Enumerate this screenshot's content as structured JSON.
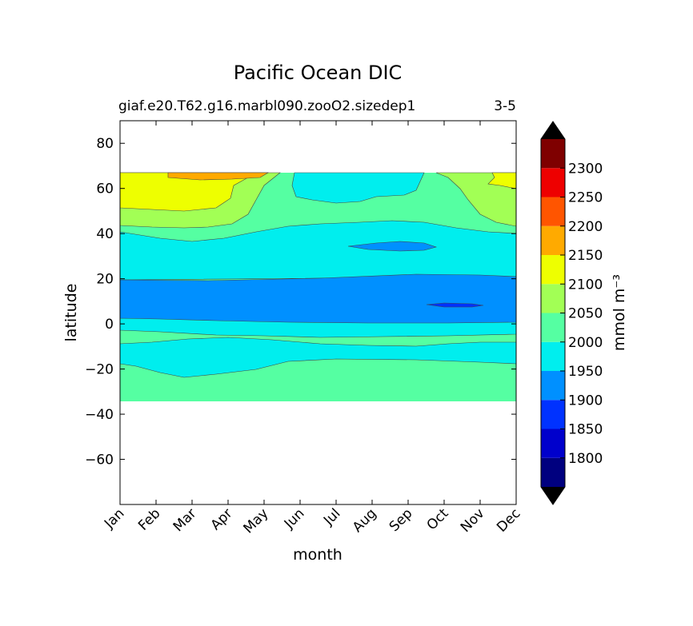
{
  "chart_data": {
    "type": "heatmap",
    "title": "Pacific Ocean DIC",
    "subtitle_left": "giaf.e20.T62.g16.marbl090.zooO2.sizedep1",
    "subtitle_right": "3-5",
    "xlabel": "month",
    "ylabel": "latitude",
    "x_categories": [
      "Jan",
      "Feb",
      "Mar",
      "Apr",
      "May",
      "Jun",
      "Jul",
      "Aug",
      "Sep",
      "Oct",
      "Nov",
      "Dec"
    ],
    "xlim": [
      0,
      11
    ],
    "ylim": [
      -80,
      90
    ],
    "yticks": [
      80,
      60,
      40,
      20,
      0,
      -20,
      -40,
      -60
    ],
    "ytick_labels": [
      "80",
      "60",
      "40",
      "20",
      "0",
      "−20",
      "−40",
      "−60"
    ],
    "data_extent_lat": [
      -34,
      67
    ],
    "colorbar": {
      "label": "mmol m⁻³",
      "extend": "both",
      "levels": [
        1750,
        1800,
        1850,
        1900,
        1950,
        2000,
        2050,
        2100,
        2150,
        2200,
        2250,
        2300,
        2350
      ],
      "tick_values": [
        1800,
        1850,
        1900,
        1950,
        2000,
        2050,
        2100,
        2150,
        2200,
        2250,
        2300
      ],
      "tick_labels": [
        "1800",
        "1850",
        "1900",
        "1950",
        "2000",
        "2050",
        "2100",
        "2150",
        "2200",
        "2250",
        "2300"
      ],
      "colors": [
        "#00007f",
        "#0000cc",
        "#0032ff",
        "#0090ff",
        "#00eeee",
        "#55ffa2",
        "#a2ff55",
        "#eeff00",
        "#ffaa00",
        "#ff5500",
        "#ee0000",
        "#7f0000"
      ],
      "under_color": "#000000",
      "over_color": "#000000"
    },
    "grid": false,
    "legend": "colorbar-right"
  }
}
